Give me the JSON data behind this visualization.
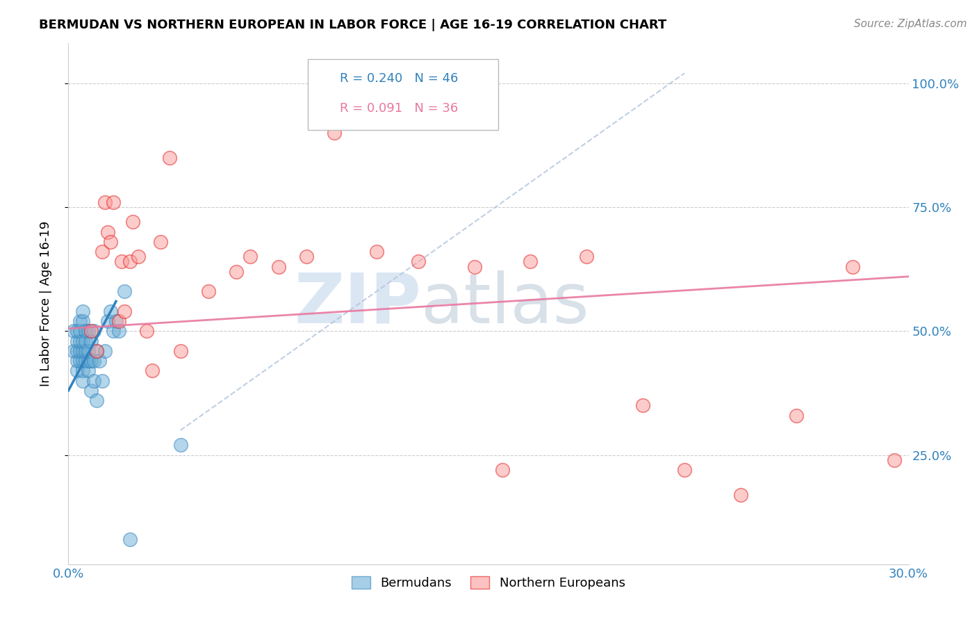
{
  "title": "BERMUDAN VS NORTHERN EUROPEAN IN LABOR FORCE | AGE 16-19 CORRELATION CHART",
  "source": "Source: ZipAtlas.com",
  "ylabel": "In Labor Force | Age 16-19",
  "xlim": [
    0.0,
    0.3
  ],
  "ylim": [
    0.03,
    1.08
  ],
  "yticks": [
    0.25,
    0.5,
    0.75,
    1.0
  ],
  "ytick_labels": [
    "25.0%",
    "50.0%",
    "75.0%",
    "100.0%"
  ],
  "xticks": [
    0.0,
    0.05,
    0.1,
    0.15,
    0.2,
    0.25,
    0.3
  ],
  "xtick_labels": [
    "0.0%",
    "",
    "",
    "",
    "",
    "",
    "30.0%"
  ],
  "legend_r1": "0.240",
  "legend_n1": "46",
  "legend_r2": "0.091",
  "legend_n2": "36",
  "blue_color": "#6baed6",
  "pink_color": "#fb9a99",
  "blue_edge_color": "#3182bd",
  "pink_edge_color": "#e31a1c",
  "blue_line_color": "#3182bd",
  "pink_line_color": "#e878a0",
  "diag_line_color": "#b0c4de",
  "watermark": "ZIP",
  "watermark2": "atlas",
  "watermark_color1": "#b8d0e8",
  "watermark_color2": "#b8c8d8",
  "blue_scatter_x": [
    0.002,
    0.002,
    0.003,
    0.003,
    0.003,
    0.003,
    0.003,
    0.004,
    0.004,
    0.004,
    0.004,
    0.004,
    0.005,
    0.005,
    0.005,
    0.005,
    0.005,
    0.005,
    0.005,
    0.006,
    0.006,
    0.006,
    0.006,
    0.007,
    0.007,
    0.007,
    0.007,
    0.008,
    0.008,
    0.008,
    0.009,
    0.009,
    0.009,
    0.01,
    0.01,
    0.011,
    0.012,
    0.013,
    0.014,
    0.015,
    0.016,
    0.017,
    0.018,
    0.02,
    0.022,
    0.04
  ],
  "blue_scatter_y": [
    0.46,
    0.5,
    0.42,
    0.44,
    0.46,
    0.48,
    0.5,
    0.44,
    0.46,
    0.48,
    0.5,
    0.52,
    0.4,
    0.42,
    0.44,
    0.46,
    0.48,
    0.52,
    0.54,
    0.44,
    0.46,
    0.48,
    0.5,
    0.42,
    0.44,
    0.46,
    0.5,
    0.38,
    0.44,
    0.48,
    0.4,
    0.44,
    0.5,
    0.36,
    0.46,
    0.44,
    0.4,
    0.46,
    0.52,
    0.54,
    0.5,
    0.52,
    0.5,
    0.58,
    0.08,
    0.27
  ],
  "pink_scatter_x": [
    0.008,
    0.01,
    0.012,
    0.013,
    0.014,
    0.015,
    0.016,
    0.018,
    0.019,
    0.02,
    0.022,
    0.023,
    0.025,
    0.028,
    0.03,
    0.033,
    0.036,
    0.04,
    0.05,
    0.06,
    0.065,
    0.075,
    0.085,
    0.095,
    0.11,
    0.125,
    0.145,
    0.155,
    0.165,
    0.185,
    0.205,
    0.22,
    0.24,
    0.26,
    0.28,
    0.295
  ],
  "pink_scatter_y": [
    0.5,
    0.46,
    0.66,
    0.76,
    0.7,
    0.68,
    0.76,
    0.52,
    0.64,
    0.54,
    0.64,
    0.72,
    0.65,
    0.5,
    0.42,
    0.68,
    0.85,
    0.46,
    0.58,
    0.62,
    0.65,
    0.63,
    0.65,
    0.9,
    0.66,
    0.64,
    0.63,
    0.22,
    0.64,
    0.65,
    0.35,
    0.22,
    0.17,
    0.33,
    0.63,
    0.24
  ],
  "blue_short_line_x": [
    0.0,
    0.017
  ],
  "blue_short_line_y": [
    0.38,
    0.56
  ],
  "pink_line_x": [
    0.0,
    0.3
  ],
  "pink_line_y": [
    0.505,
    0.61
  ],
  "diag_line_x": [
    0.04,
    0.22
  ],
  "diag_line_y": [
    0.3,
    1.02
  ]
}
